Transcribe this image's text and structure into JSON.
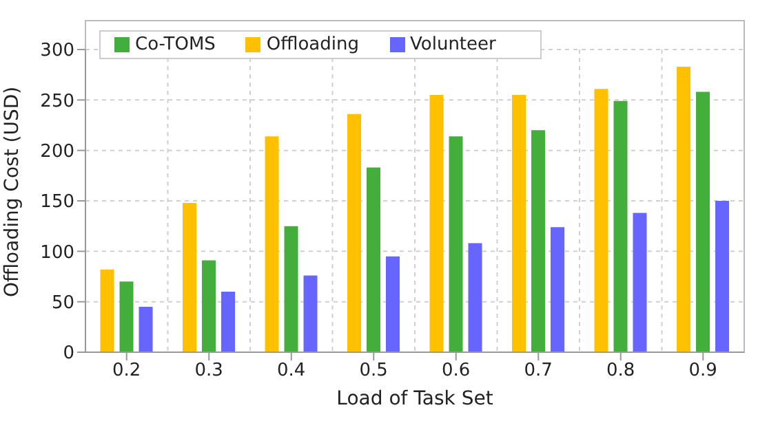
{
  "chart_data": {
    "type": "bar",
    "xlabel": "Load of Task Set",
    "ylabel": "Offloading Cost (USD)",
    "categories": [
      "0.2",
      "0.3",
      "0.4",
      "0.5",
      "0.6",
      "0.7",
      "0.8",
      "0.9"
    ],
    "series": [
      {
        "name": "Offloading",
        "color": "#ffc000",
        "values": [
          82,
          148,
          214,
          236,
          255,
          255,
          261,
          283
        ]
      },
      {
        "name": "Co-TOMS",
        "color": "#44ae3c",
        "values": [
          70,
          91,
          125,
          183,
          214,
          220,
          249,
          258
        ]
      },
      {
        "name": "Volunteer",
        "color": "#6666ff",
        "values": [
          45,
          60,
          76,
          95,
          108,
          124,
          138,
          150
        ]
      }
    ],
    "ylim": [
      0,
      300
    ],
    "yticks": [
      0,
      50,
      100,
      150,
      200,
      250,
      300
    ],
    "grid": true,
    "legend": "top left"
  }
}
